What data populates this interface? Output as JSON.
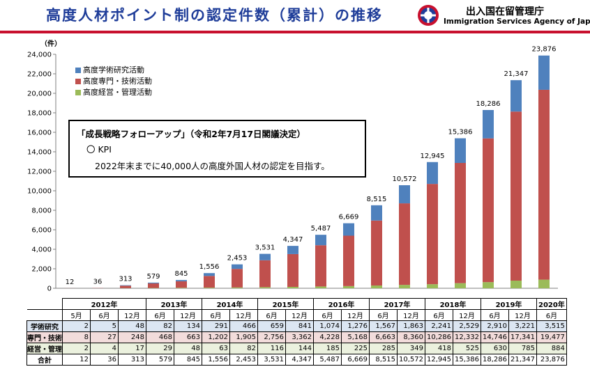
{
  "header": {
    "title": "高度人材ポイント制の認定件数（累計）の推移",
    "agency_jp": "出入国在留管理庁",
    "agency_en": "Immigration Services Agency of Japan"
  },
  "kpi": {
    "heading": "「成長戦略フォローアップ」（令和2年7月17日閣議決定）",
    "label": "〇 KPI",
    "text": "2022年末までに40,000人の高度外国人材の認定を目指す。"
  },
  "colors": {
    "academic": "#4f81bd",
    "technical": "#c0504d",
    "management": "#9bbb59"
  },
  "chart_data": {
    "type": "bar",
    "stacked": true,
    "unit_label": "（件）",
    "ylim": [
      0,
      24000
    ],
    "yticks": [
      "0",
      "2,000",
      "4,000",
      "6,000",
      "8,000",
      "10,000",
      "12,000",
      "14,000",
      "16,000",
      "18,000",
      "20,000",
      "22,000",
      "24,000"
    ],
    "categories": [
      "2012年5月",
      "2012年6月",
      "2012年12月",
      "2013年6月",
      "2013年12月",
      "2014年6月",
      "2014年12月",
      "2015年6月",
      "2015年12月",
      "2016年6月",
      "2016年12月",
      "2017年6月",
      "2017年12月",
      "2018年6月",
      "2018年12月",
      "2019年6月",
      "2019年12月",
      "2020年6月"
    ],
    "series": [
      {
        "name": "高度経営・管理活動",
        "key": "management",
        "values": [
          2,
          4,
          17,
          29,
          48,
          63,
          82,
          116,
          144,
          185,
          225,
          285,
          349,
          418,
          525,
          630,
          785,
          884
        ]
      },
      {
        "name": "高度専門・技術活動",
        "key": "technical",
        "values": [
          8,
          27,
          248,
          468,
          663,
          1202,
          1905,
          2756,
          3362,
          4228,
          5168,
          6663,
          8360,
          10286,
          12332,
          14746,
          17341,
          19477
        ]
      },
      {
        "name": "高度学術研究活動",
        "key": "academic",
        "values": [
          2,
          5,
          48,
          82,
          134,
          291,
          466,
          659,
          841,
          1074,
          1276,
          1567,
          1863,
          2241,
          2529,
          2910,
          3221,
          3515
        ]
      }
    ],
    "totals": [
      12,
      36,
      313,
      579,
      845,
      1556,
      2453,
      3531,
      4347,
      5487,
      6669,
      8515,
      10572,
      12945,
      15386,
      18286,
      21347,
      23876
    ],
    "total_labels": [
      "12",
      "36",
      "313",
      "579",
      "845",
      "1,556",
      "2,453",
      "3,531",
      "4,347",
      "5,487",
      "6,669",
      "8,515",
      "10,572",
      "12,945",
      "15,386",
      "18,286",
      "21,347",
      "23,876"
    ],
    "legend": [
      "高度学術研究活動",
      "高度専門・技術活動",
      "高度経営・管理活動"
    ]
  },
  "table": {
    "years": [
      {
        "label": "2012年",
        "span": 3
      },
      {
        "label": "2013年",
        "span": 2
      },
      {
        "label": "2014年",
        "span": 2
      },
      {
        "label": "2015年",
        "span": 2
      },
      {
        "label": "2016年",
        "span": 2
      },
      {
        "label": "2017年",
        "span": 2
      },
      {
        "label": "2018年",
        "span": 2
      },
      {
        "label": "2019年",
        "span": 2
      },
      {
        "label": "2020年",
        "span": 1
      }
    ],
    "months": [
      "5月",
      "6月",
      "12月",
      "6月",
      "12月",
      "6月",
      "12月",
      "6月",
      "12月",
      "6月",
      "12月",
      "6月",
      "12月",
      "6月",
      "12月",
      "6月",
      "12月",
      "6月"
    ],
    "rows": [
      {
        "label": "学術研究",
        "cls": "r-gk",
        "values": [
          "2",
          "5",
          "48",
          "82",
          "134",
          "291",
          "466",
          "659",
          "841",
          "1,074",
          "1,276",
          "1,567",
          "1,863",
          "2,241",
          "2,529",
          "2,910",
          "3,221",
          "3,515"
        ]
      },
      {
        "label": "専門・技術",
        "cls": "r-sg",
        "values": [
          "8",
          "27",
          "248",
          "468",
          "663",
          "1,202",
          "1,905",
          "2,756",
          "3,362",
          "4,228",
          "5,168",
          "6,663",
          "8,360",
          "10,286",
          "12,332",
          "14,746",
          "17,341",
          "19,477"
        ]
      },
      {
        "label": "経営・管理",
        "cls": "r-kk",
        "values": [
          "2",
          "4",
          "17",
          "29",
          "48",
          "63",
          "82",
          "116",
          "144",
          "185",
          "225",
          "285",
          "349",
          "418",
          "525",
          "630",
          "785",
          "884"
        ]
      },
      {
        "label": "合計",
        "cls": "r-tot",
        "values": [
          "12",
          "36",
          "313",
          "579",
          "845",
          "1,556",
          "2,453",
          "3,531",
          "4,347",
          "5,487",
          "6,669",
          "8,515",
          "10,572",
          "12,945",
          "15,386",
          "18,286",
          "21,347",
          "23,876"
        ]
      }
    ]
  }
}
